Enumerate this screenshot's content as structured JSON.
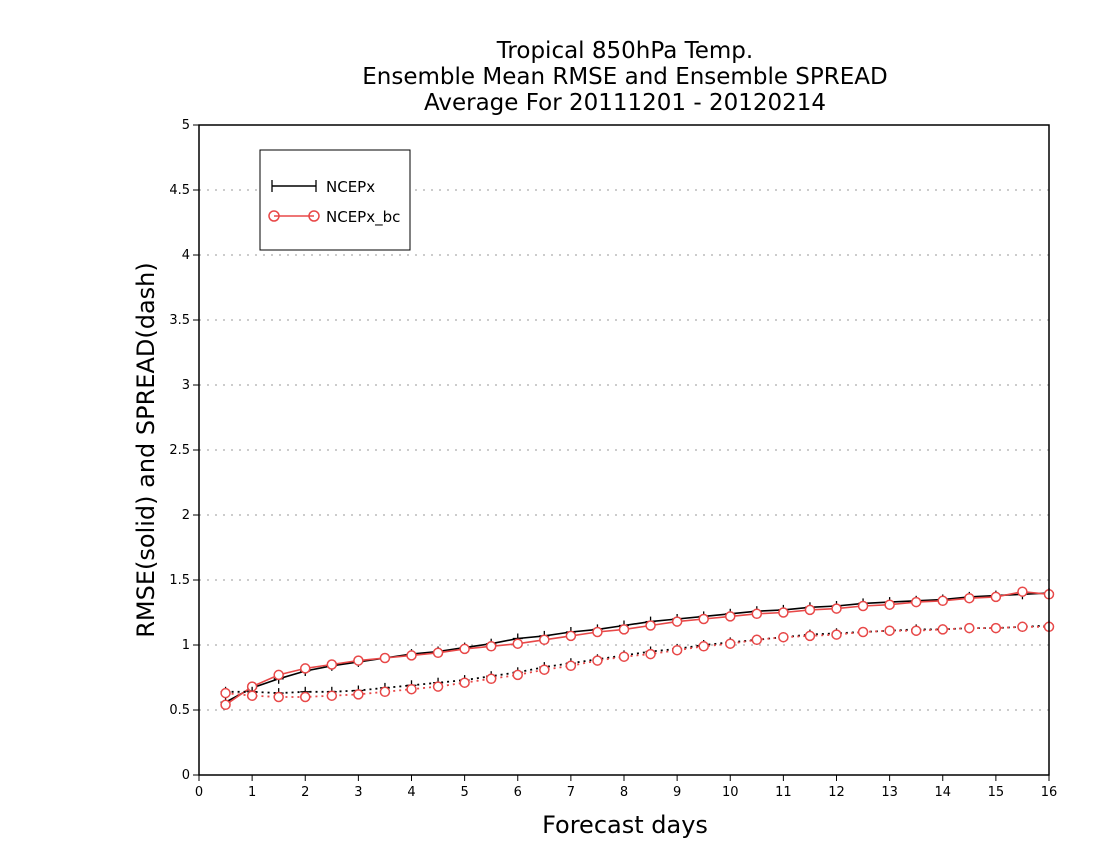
{
  "chart_data": {
    "type": "line",
    "title": [
      "Tropical 850hPa Temp.",
      "Ensemble Mean RMSE and Ensemble SPREAD",
      "Average For 20111201 - 20120214"
    ],
    "xlabel": "Forecast days",
    "ylabel": "RMSE(solid) and SPREAD(dash)",
    "xlim": [
      0,
      16
    ],
    "ylim": [
      0,
      5
    ],
    "xticks": [
      "0",
      "1",
      "2",
      "3",
      "4",
      "5",
      "6",
      "7",
      "8",
      "9",
      "10",
      "11",
      "12",
      "13",
      "14",
      "15",
      "16"
    ],
    "yticks": [
      "0",
      "0.5",
      "1",
      "1.5",
      "2",
      "2.5",
      "3",
      "3.5",
      "4",
      "4.5",
      "5"
    ],
    "grid": true,
    "legend_position": "top-left",
    "x": [
      0.5,
      1,
      1.5,
      2,
      2.5,
      3,
      3.5,
      4,
      4.5,
      5,
      5.5,
      6,
      6.5,
      7,
      7.5,
      8,
      8.5,
      9,
      9.5,
      10,
      10.5,
      11,
      11.5,
      12,
      12.5,
      13,
      13.5,
      14,
      14.5,
      15,
      15.5,
      16
    ],
    "series": [
      {
        "name": "NCEPx",
        "style": "solid",
        "metric": "RMSE",
        "color": "#000000",
        "marker": "plus",
        "values": [
          0.56,
          0.67,
          0.74,
          0.8,
          0.84,
          0.87,
          0.9,
          0.93,
          0.95,
          0.98,
          1.01,
          1.05,
          1.07,
          1.1,
          1.12,
          1.15,
          1.18,
          1.2,
          1.22,
          1.24,
          1.26,
          1.27,
          1.29,
          1.3,
          1.32,
          1.33,
          1.34,
          1.35,
          1.37,
          1.38,
          1.39,
          1.4
        ]
      },
      {
        "name": "NCEPx_bc",
        "style": "solid",
        "metric": "RMSE",
        "color": "#e84848",
        "marker": "circle",
        "values": [
          0.54,
          0.68,
          0.77,
          0.82,
          0.85,
          0.88,
          0.9,
          0.92,
          0.94,
          0.97,
          0.99,
          1.01,
          1.04,
          1.07,
          1.1,
          1.12,
          1.15,
          1.18,
          1.2,
          1.22,
          1.24,
          1.25,
          1.27,
          1.28,
          1.3,
          1.31,
          1.33,
          1.34,
          1.36,
          1.37,
          1.41,
          1.39
        ]
      },
      {
        "name": "NCEPx",
        "style": "dotted",
        "metric": "SPREAD",
        "color": "#000000",
        "marker": "plus",
        "values": [
          0.64,
          0.64,
          0.63,
          0.64,
          0.64,
          0.65,
          0.67,
          0.69,
          0.71,
          0.73,
          0.76,
          0.79,
          0.83,
          0.86,
          0.89,
          0.92,
          0.95,
          0.97,
          1.0,
          1.02,
          1.04,
          1.06,
          1.08,
          1.09,
          1.1,
          1.11,
          1.12,
          1.12,
          1.13,
          1.13,
          1.14,
          1.15
        ]
      },
      {
        "name": "NCEPx_bc",
        "style": "dotted",
        "metric": "SPREAD",
        "color": "#e84848",
        "marker": "circle",
        "values": [
          0.63,
          0.61,
          0.6,
          0.6,
          0.61,
          0.62,
          0.64,
          0.66,
          0.68,
          0.71,
          0.74,
          0.77,
          0.81,
          0.84,
          0.88,
          0.91,
          0.93,
          0.96,
          0.99,
          1.01,
          1.04,
          1.06,
          1.07,
          1.08,
          1.1,
          1.11,
          1.11,
          1.12,
          1.13,
          1.13,
          1.14,
          1.14
        ]
      }
    ]
  }
}
